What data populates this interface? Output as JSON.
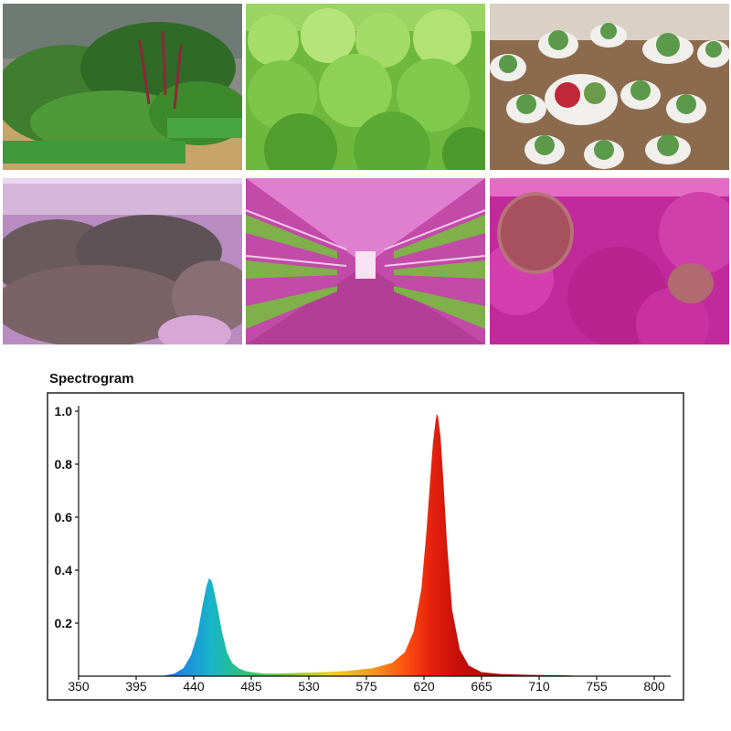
{
  "photos": [
    {
      "name": "photo-leafy-greens-tray",
      "alt": "Leafy greens growing in green trays"
    },
    {
      "name": "photo-lettuce-bed",
      "alt": "Bright green lettuce bed"
    },
    {
      "name": "photo-succulents-pots",
      "alt": "Succulents in white pots"
    },
    {
      "name": "photo-red-lettuce-purple-light",
      "alt": "Lettuce under purple grow light"
    },
    {
      "name": "photo-vertical-farm-racks",
      "alt": "Vertical farm racks with pink LED lighting"
    },
    {
      "name": "photo-melons-pink-light",
      "alt": "Melons and leaves under pink grow light"
    }
  ],
  "chart_data": {
    "type": "area",
    "title": "Spectrogram",
    "xlabel": "",
    "ylabel": "",
    "xlim": [
      350,
      800
    ],
    "ylim": [
      0,
      1.0
    ],
    "x_ticks": [
      350,
      395,
      440,
      485,
      530,
      575,
      620,
      665,
      710,
      755,
      800
    ],
    "y_ticks": [
      0.2,
      0.4,
      0.6,
      0.8,
      1.0
    ],
    "y_tick_labels": [
      "0.2",
      "0.4",
      "0.6",
      "0.8",
      "1.0"
    ],
    "grid": false,
    "series": [
      {
        "x": [
          415,
          425,
          432,
          438,
          443,
          447,
          450,
          452,
          454,
          456,
          459,
          462,
          466,
          470,
          475,
          480,
          485,
          495,
          505,
          520,
          540,
          560,
          580,
          595,
          605,
          612,
          618,
          622,
          625,
          627,
          629,
          630,
          631,
          633,
          635,
          638,
          642,
          648,
          655,
          665,
          680,
          700,
          730,
          750
        ],
        "y": [
          0.0,
          0.01,
          0.03,
          0.08,
          0.16,
          0.27,
          0.34,
          0.37,
          0.36,
          0.32,
          0.25,
          0.17,
          0.09,
          0.05,
          0.03,
          0.02,
          0.015,
          0.01,
          0.01,
          0.012,
          0.015,
          0.02,
          0.03,
          0.05,
          0.09,
          0.17,
          0.33,
          0.55,
          0.75,
          0.88,
          0.96,
          0.99,
          0.98,
          0.9,
          0.75,
          0.5,
          0.25,
          0.1,
          0.04,
          0.015,
          0.008,
          0.005,
          0.003,
          0.0
        ]
      }
    ]
  }
}
